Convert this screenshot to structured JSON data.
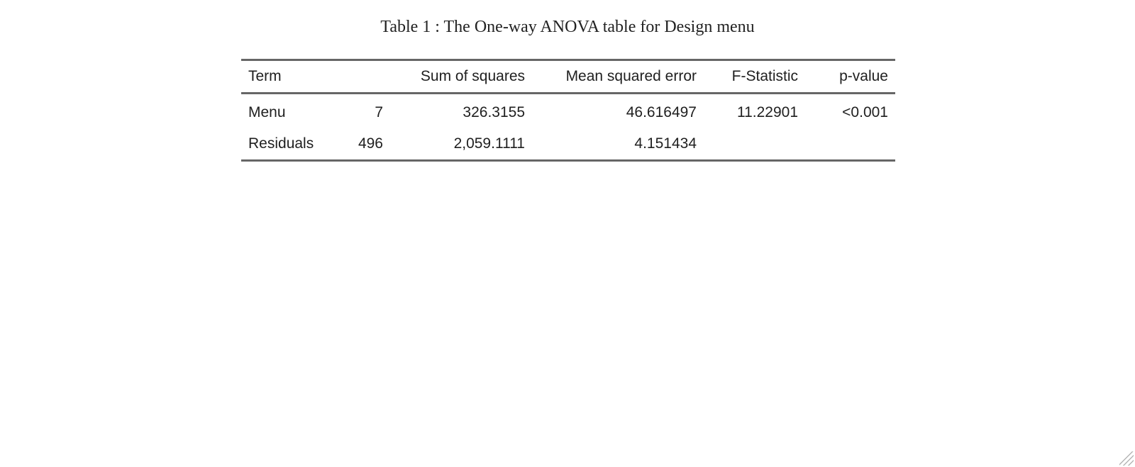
{
  "caption": "Table 1 : The One-way ANOVA table for Design menu",
  "table": {
    "headers": [
      "Term",
      "",
      "Sum of squares",
      "Mean squared error",
      "F-Statistic",
      "p-value"
    ],
    "rows": [
      [
        "Menu",
        "7",
        "326.3155",
        "46.616497",
        "11.22901",
        "<0.001"
      ],
      [
        "Residuals",
        "496",
        "2,059.1111",
        "4.151434",
        "",
        ""
      ]
    ]
  },
  "icons": {
    "corner": "resize-grip-icon"
  }
}
